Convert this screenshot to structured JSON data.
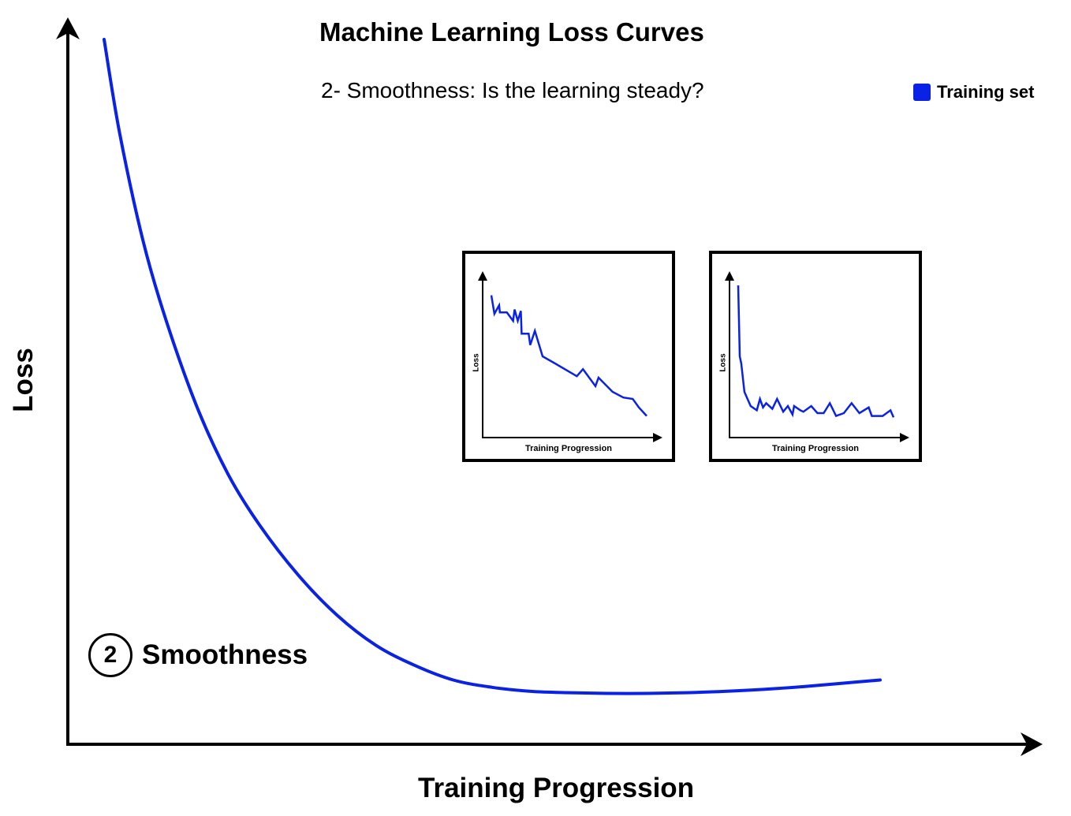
{
  "colors": {
    "series": "#0a22e6",
    "axis": "#000000"
  },
  "chart_data": {
    "type": "line",
    "title": "Machine Learning Loss Curves",
    "subtitle": "2- Smoothness: Is the learning steady?",
    "xlabel": "Training Progression",
    "ylabel": "Loss",
    "legend": {
      "placement": "top-right",
      "entries": [
        "Training set"
      ]
    },
    "grid": false,
    "xlim": [
      0,
      100
    ],
    "ylim": [
      0,
      100
    ],
    "annotation": {
      "number": "2",
      "text": "Smoothness"
    },
    "series": [
      {
        "name": "Training set",
        "x": [
          0,
          2,
          5,
          8,
          12,
          16,
          20,
          25,
          30,
          35,
          40,
          45,
          50,
          55,
          60,
          65,
          70,
          75,
          80,
          85,
          90,
          95,
          100
        ],
        "y": [
          100,
          86,
          70,
          58,
          45,
          35,
          27.5,
          20,
          14,
          9.5,
          6.5,
          4.3,
          3.2,
          2.6,
          2.4,
          2.3,
          2.3,
          2.4,
          2.6,
          2.9,
          3.3,
          3.8,
          4.3
        ]
      }
    ],
    "insets": [
      {
        "xlabel": "Training Progression",
        "ylabel": "Loss",
        "x": [
          0,
          2,
          5,
          5.5,
          10,
          14,
          15,
          17,
          19,
          19.5,
          24,
          25,
          28,
          33,
          41,
          55,
          59,
          67,
          69,
          78,
          85,
          91,
          95,
          100
        ],
        "y": [
          93,
          80,
          86,
          81,
          81,
          75,
          83,
          75,
          82,
          66,
          66,
          58,
          68,
          50,
          45,
          36,
          41,
          29,
          35,
          25,
          21,
          20,
          14,
          8
        ]
      },
      {
        "xlabel": "Training Progression",
        "ylabel": "Loss",
        "x": [
          0,
          1,
          2,
          3,
          4,
          6,
          8,
          12,
          14,
          16,
          18,
          22,
          25,
          29,
          32,
          35,
          36,
          40,
          42,
          47,
          51,
          55,
          59,
          63,
          68,
          73,
          78,
          84,
          86,
          93,
          98,
          100
        ],
        "y": [
          100,
          50,
          45,
          35,
          25,
          20,
          15,
          12,
          20,
          14,
          17,
          13,
          20,
          11,
          15,
          9,
          15,
          12,
          11,
          15,
          10,
          10,
          17,
          8,
          10,
          17,
          10,
          14,
          8,
          8,
          12,
          7
        ]
      }
    ]
  }
}
